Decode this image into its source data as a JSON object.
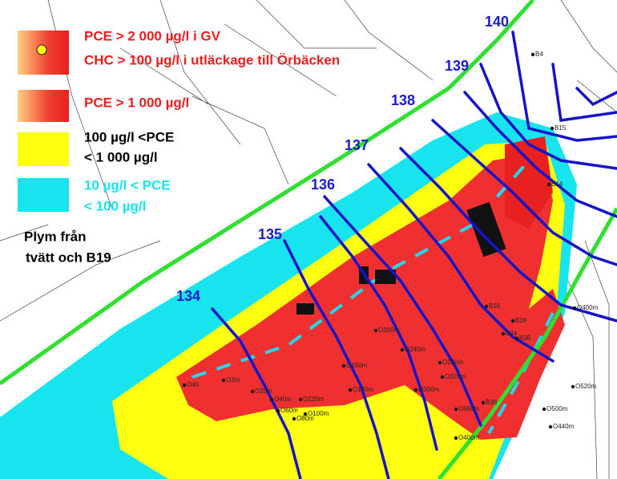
{
  "legend": {
    "items": [
      {
        "lines": [
          "PCE > 2 000 µg/l i GV",
          "CHC > 100 µg/l i utläckage till Örbäcken"
        ]
      },
      {
        "lines": [
          "PCE > 1 000 µg/l"
        ]
      },
      {
        "lines": [
          "100 µg/l <PCE",
          "< 1 000 µg/l"
        ]
      },
      {
        "lines": [
          "10 µg/l < PCE",
          "< 100 µg/l"
        ]
      }
    ],
    "note": [
      "Plym från",
      "tvätt och B19"
    ]
  },
  "contour_labels": [
    140,
    139,
    138,
    137,
    136,
    135,
    134
  ],
  "point_labels": [
    "B4",
    "B15",
    "B14",
    "B16",
    "B18",
    "B34",
    "B36",
    "B38",
    "O200m",
    "O240m",
    "O280m",
    "O300m",
    "O320m",
    "O360m",
    "O400m",
    "O150m",
    "O140m",
    "O120m",
    "O100m",
    "O80m",
    "O60m",
    "O40m",
    "O20m",
    "O2m",
    "O40",
    "O500m",
    "O520m",
    "O440m",
    "O400m"
  ]
}
